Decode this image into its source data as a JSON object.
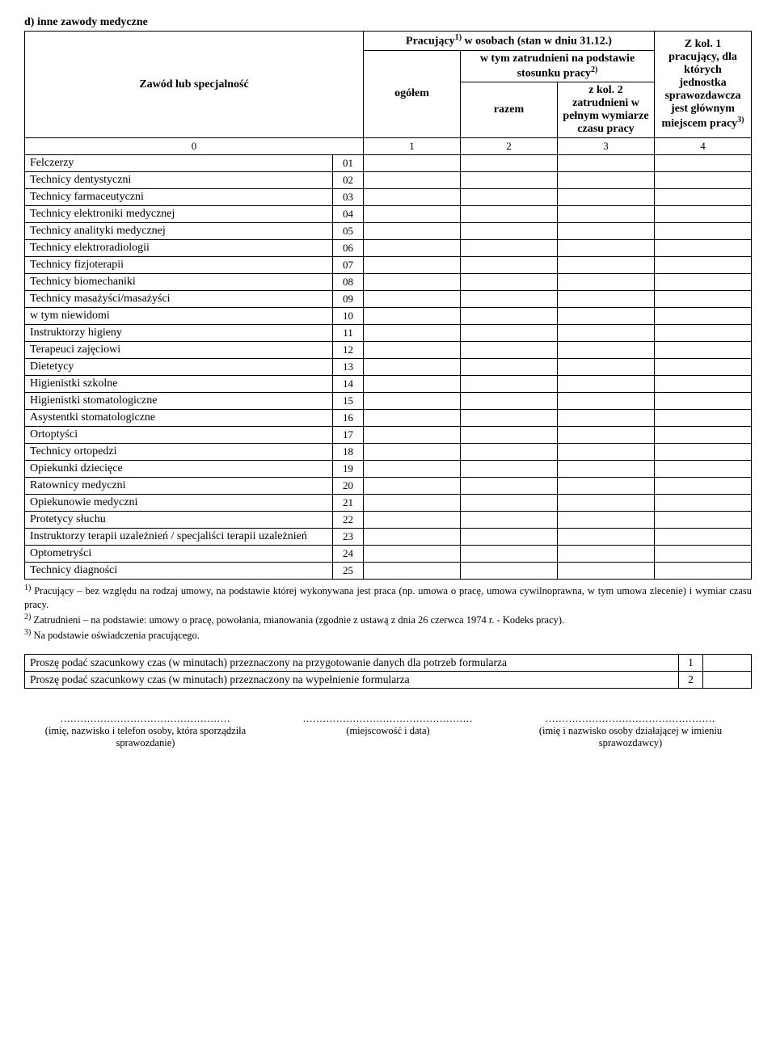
{
  "section_title": "d) inne zawody medyczne",
  "header": {
    "col_a": "Zawód lub specjalność",
    "col_group": "Pracujący",
    "col_group_sup": "1)",
    "col_group_rest": " w osobach (stan w dniu 31.12.)",
    "sub_total": "ogółem",
    "sub_employed_group": "w tym zatrudnieni na podstawie stosunku pracy",
    "sub_employed_sup": "2)",
    "sub_razem": "razem",
    "sub_fulltime": "z kol. 2 zatrudnieni w pełnym wymiarze czasu pracy",
    "col_last": "Z kol. 1 pracujący, dla których jednostka sprawozdawcza jest głównym miejscem pracy",
    "col_last_sup": "3)",
    "num0": "0",
    "num1": "1",
    "num2": "2",
    "num3": "3",
    "num4": "4"
  },
  "rows": [
    {
      "label": "Felczerzy",
      "code": "01"
    },
    {
      "label": "Technicy dentystyczni",
      "code": "02"
    },
    {
      "label": "Technicy farmaceutyczni",
      "code": "03"
    },
    {
      "label": "Technicy elektroniki medycznej",
      "code": "04"
    },
    {
      "label": "Technicy analityki medycznej",
      "code": "05"
    },
    {
      "label": "Technicy elektroradiologii",
      "code": "06"
    },
    {
      "label": "Technicy fizjoterapii",
      "code": "07"
    },
    {
      "label": "Technicy biomechaniki",
      "code": "08"
    },
    {
      "label": "Technicy masażyści/masażyści",
      "code": "09"
    },
    {
      "label": "w tym niewidomi",
      "code": "10"
    },
    {
      "label": "Instruktorzy higieny",
      "code": "11"
    },
    {
      "label": "Terapeuci zajęciowi",
      "code": "12"
    },
    {
      "label": "Dietetycy",
      "code": "13"
    },
    {
      "label": "Higienistki szkolne",
      "code": "14"
    },
    {
      "label": "Higienistki stomatologiczne",
      "code": "15"
    },
    {
      "label": "Asystentki stomatologiczne",
      "code": "16"
    },
    {
      "label": "Ortoptyści",
      "code": "17"
    },
    {
      "label": "Technicy ortopedzi",
      "code": "18"
    },
    {
      "label": "Opiekunki dziecięce",
      "code": "19"
    },
    {
      "label": "Ratownicy medyczni",
      "code": "20"
    },
    {
      "label": "Opiekunowie medyczni",
      "code": "21"
    },
    {
      "label": "Protetycy słuchu",
      "code": "22"
    },
    {
      "label": "Instruktorzy terapii uzależnień / specjaliści terapii uzależnień",
      "code": "23"
    },
    {
      "label": "Optometryści",
      "code": "24"
    },
    {
      "label": "Technicy diagności",
      "code": "25"
    }
  ],
  "footnotes": {
    "f1_sup": "1)",
    "f1": " Pracujący – bez względu na rodzaj umowy, na podstawie której wykonywana jest praca (np. umowa o pracę, umowa cywilnoprawna, w tym umowa zlecenie) i wymiar czasu pracy.",
    "f2_sup": "2)",
    "f2": " Zatrudnieni – na podstawie: umowy o pracę, powołania, mianowania (zgodnie z ustawą z dnia 26 czerwca 1974 r. - Kodeks pracy).",
    "f3_sup": "3)",
    "f3": " Na podstawie oświadczenia pracującego."
  },
  "time_table": {
    "row1_text": "Proszę podać szacunkowy czas (w minutach) przeznaczony na przygotowanie danych dla potrzeb formularza",
    "row1_num": "1",
    "row2_text": "Proszę podać szacunkowy czas (w minutach) przeznaczony na wypełnienie formularza",
    "row2_num": "2"
  },
  "signatures": {
    "dots": "...................................................",
    "s1": "(imię, nazwisko i telefon osoby, która sporządziła sprawozdanie)",
    "s2": "(miejscowość i data)",
    "s3": "(imię i nazwisko osoby działającej w imieniu sprawozdawcy)"
  }
}
